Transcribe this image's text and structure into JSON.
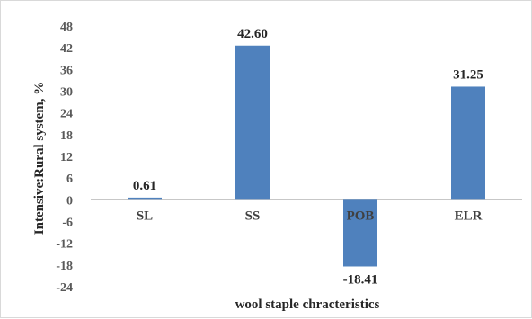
{
  "chart_data": {
    "type": "bar",
    "categories": [
      "SL",
      "SS",
      "POB",
      "ELR"
    ],
    "values": [
      0.61,
      42.6,
      -18.41,
      31.25
    ],
    "data_labels": [
      "0.61",
      "42.60",
      "-18.41",
      "31.25"
    ],
    "xlabel": "wool staple chracteristics",
    "ylabel": "Intensive:Rural system, %",
    "ylim": [
      -24,
      48
    ],
    "yticks": [
      48,
      42,
      36,
      30,
      24,
      18,
      12,
      6,
      0,
      -6,
      -12,
      -18,
      -24
    ],
    "grid": false,
    "bar_color": "#4f81bd"
  }
}
